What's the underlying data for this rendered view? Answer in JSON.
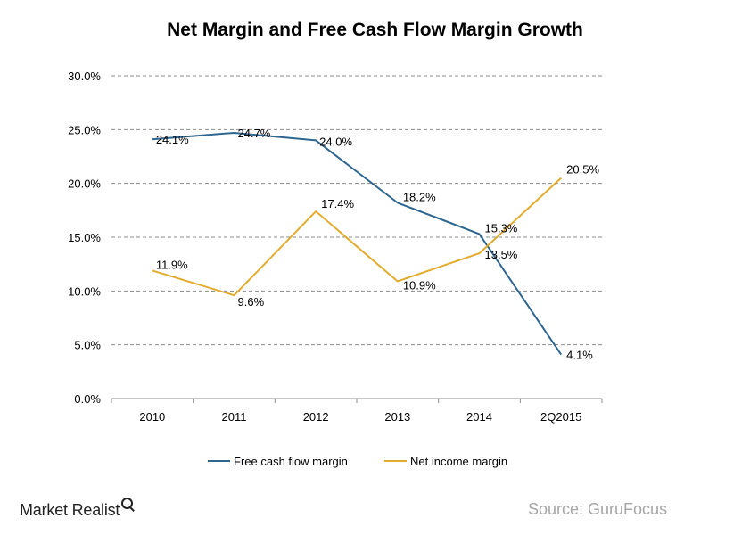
{
  "chart_data": {
    "type": "line",
    "title": "Net Margin and Free Cash Flow Margin Growth",
    "categories": [
      "2010",
      "2011",
      "2012",
      "2013",
      "2014",
      "2Q2015"
    ],
    "y_ticks": [
      "0.0%",
      "5.0%",
      "10.0%",
      "15.0%",
      "20.0%",
      "25.0%",
      "30.0%"
    ],
    "ylim": [
      0,
      30
    ],
    "grid": true,
    "legend_position": "bottom",
    "series": [
      {
        "name": "Free cash flow margin",
        "color": "#2e6690",
        "values": [
          24.1,
          24.7,
          24.0,
          18.2,
          15.3,
          4.1
        ],
        "labels": [
          "24.1%",
          "24.7%",
          "24.0%",
          "18.2%",
          "15.3%",
          "4.1%"
        ]
      },
      {
        "name": "Net income margin",
        "color": "#e2ac2e",
        "values": [
          11.9,
          9.6,
          17.4,
          10.9,
          13.5,
          20.5
        ],
        "labels": [
          "11.9%",
          "9.6%",
          "17.4%",
          "10.9%",
          "13.5%",
          "20.5%"
        ]
      }
    ]
  },
  "footer": {
    "brand": "Market Realist",
    "source": "Source: GuruFocus"
  }
}
